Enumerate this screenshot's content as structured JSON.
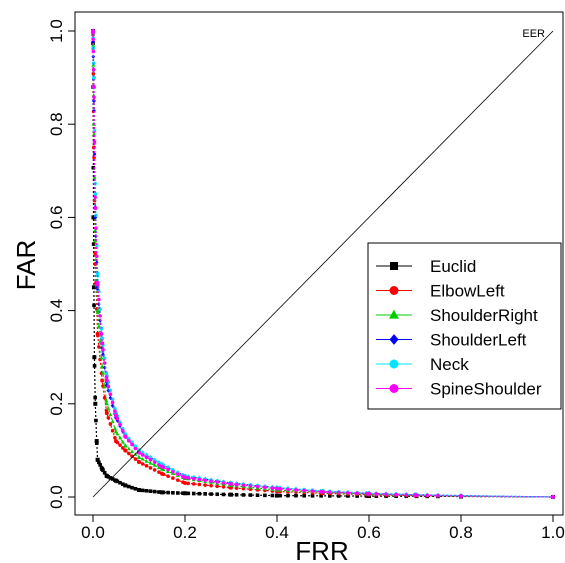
{
  "chart_data": {
    "type": "line",
    "title": "",
    "xlabel": "FRR",
    "ylabel": "FAR",
    "xlim": [
      0,
      1
    ],
    "ylim": [
      0,
      1
    ],
    "x_ticks": [
      "0.0",
      "0.2",
      "0.4",
      "0.6",
      "0.8",
      "1.0"
    ],
    "y_ticks": [
      "0.0",
      "0.2",
      "0.4",
      "0.6",
      "0.8",
      "1.0"
    ],
    "grid": false,
    "legend_position": "right",
    "reference_line": {
      "label": "EER",
      "from": [
        0,
        0
      ],
      "to": [
        1,
        1
      ]
    },
    "series": [
      {
        "name": "Euclid",
        "color": "#000000",
        "marker": "square",
        "points": [
          [
            0,
            1.0
          ],
          [
            0.001,
            0.6
          ],
          [
            0.002,
            0.45
          ],
          [
            0.003,
            0.3
          ],
          [
            0.005,
            0.2
          ],
          [
            0.008,
            0.12
          ],
          [
            0.01,
            0.08
          ],
          [
            0.02,
            0.06
          ],
          [
            0.03,
            0.045
          ],
          [
            0.05,
            0.035
          ],
          [
            0.07,
            0.025
          ],
          [
            0.1,
            0.015
          ],
          [
            0.15,
            0.01
          ],
          [
            0.2,
            0.008
          ],
          [
            0.3,
            0.005
          ],
          [
            0.4,
            0.003
          ],
          [
            0.6,
            0.002
          ],
          [
            0.8,
            0.001
          ],
          [
            1.0,
            0.0
          ]
        ]
      },
      {
        "name": "ElbowLeft",
        "color": "#ff0000",
        "marker": "circle",
        "points": [
          [
            0,
            1.0
          ],
          [
            0.002,
            0.75
          ],
          [
            0.005,
            0.5
          ],
          [
            0.01,
            0.35
          ],
          [
            0.02,
            0.25
          ],
          [
            0.03,
            0.18
          ],
          [
            0.05,
            0.12
          ],
          [
            0.07,
            0.1
          ],
          [
            0.1,
            0.075
          ],
          [
            0.15,
            0.05
          ],
          [
            0.2,
            0.03
          ],
          [
            0.3,
            0.02
          ],
          [
            0.4,
            0.012
          ],
          [
            0.5,
            0.008
          ],
          [
            0.6,
            0.005
          ],
          [
            0.7,
            0.003
          ],
          [
            0.8,
            0.002
          ],
          [
            1.0,
            0.0
          ]
        ]
      },
      {
        "name": "ShoulderRight",
        "color": "#00cc00",
        "marker": "triangle",
        "points": [
          [
            0,
            1.0
          ],
          [
            0.002,
            0.8
          ],
          [
            0.005,
            0.55
          ],
          [
            0.01,
            0.4
          ],
          [
            0.02,
            0.28
          ],
          [
            0.03,
            0.2
          ],
          [
            0.05,
            0.14
          ],
          [
            0.07,
            0.11
          ],
          [
            0.1,
            0.085
          ],
          [
            0.15,
            0.06
          ],
          [
            0.2,
            0.04
          ],
          [
            0.3,
            0.025
          ],
          [
            0.4,
            0.015
          ],
          [
            0.5,
            0.01
          ],
          [
            0.6,
            0.006
          ],
          [
            0.7,
            0.004
          ],
          [
            0.8,
            0.002
          ],
          [
            1.0,
            0.0
          ]
        ]
      },
      {
        "name": "ShoulderLeft",
        "color": "#0000ff",
        "marker": "diamond",
        "points": [
          [
            0,
            1.0
          ],
          [
            0.002,
            0.85
          ],
          [
            0.005,
            0.6
          ],
          [
            0.01,
            0.45
          ],
          [
            0.02,
            0.32
          ],
          [
            0.03,
            0.24
          ],
          [
            0.05,
            0.17
          ],
          [
            0.07,
            0.13
          ],
          [
            0.1,
            0.1
          ],
          [
            0.15,
            0.07
          ],
          [
            0.2,
            0.045
          ],
          [
            0.3,
            0.03
          ],
          [
            0.4,
            0.02
          ],
          [
            0.5,
            0.012
          ],
          [
            0.6,
            0.008
          ],
          [
            0.7,
            0.005
          ],
          [
            0.8,
            0.003
          ],
          [
            1.0,
            0.0
          ]
        ]
      },
      {
        "name": "Neck",
        "color": "#00e5ff",
        "marker": "circle",
        "points": [
          [
            0,
            1.0
          ],
          [
            0.002,
            0.9
          ],
          [
            0.005,
            0.65
          ],
          [
            0.01,
            0.48
          ],
          [
            0.02,
            0.34
          ],
          [
            0.03,
            0.26
          ],
          [
            0.05,
            0.18
          ],
          [
            0.07,
            0.135
          ],
          [
            0.1,
            0.1
          ],
          [
            0.15,
            0.07
          ],
          [
            0.2,
            0.045
          ],
          [
            0.3,
            0.03
          ],
          [
            0.4,
            0.02
          ],
          [
            0.5,
            0.013
          ],
          [
            0.6,
            0.008
          ],
          [
            0.7,
            0.005
          ],
          [
            0.8,
            0.003
          ],
          [
            1.0,
            0.0
          ]
        ]
      },
      {
        "name": "SpineShoulder",
        "color": "#ff00ff",
        "marker": "circle",
        "points": [
          [
            0,
            1.0
          ],
          [
            0.002,
            0.88
          ],
          [
            0.005,
            0.62
          ],
          [
            0.01,
            0.46
          ],
          [
            0.02,
            0.33
          ],
          [
            0.03,
            0.25
          ],
          [
            0.05,
            0.175
          ],
          [
            0.07,
            0.13
          ],
          [
            0.1,
            0.095
          ],
          [
            0.15,
            0.065
          ],
          [
            0.2,
            0.042
          ],
          [
            0.3,
            0.028
          ],
          [
            0.4,
            0.018
          ],
          [
            0.5,
            0.011
          ],
          [
            0.6,
            0.007
          ],
          [
            0.7,
            0.004
          ],
          [
            0.8,
            0.002
          ],
          [
            1.0,
            0.0
          ]
        ]
      }
    ]
  }
}
